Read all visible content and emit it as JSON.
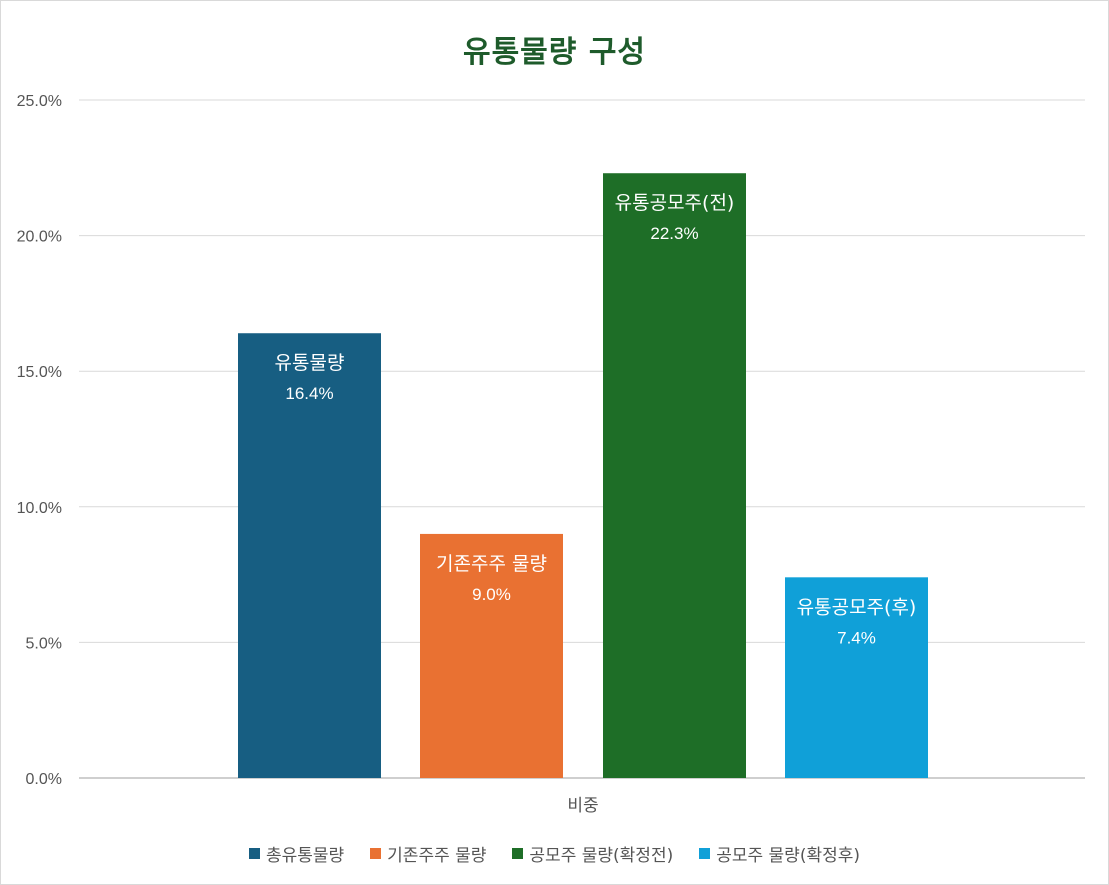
{
  "chart_data": {
    "type": "bar",
    "title": "유통물량 구성",
    "xlabel": "",
    "ylabel": "",
    "categories": [
      "비중"
    ],
    "ylim": [
      0,
      25
    ],
    "ytick_labels": [
      "0.0%",
      "5.0%",
      "10.0%",
      "15.0%",
      "20.0%",
      "25.0%"
    ],
    "ytick_values": [
      0,
      5,
      10,
      15,
      20,
      25
    ],
    "grid": true,
    "legend_position": "bottom",
    "series": [
      {
        "name": "총유통물량",
        "label": "유통물량",
        "value": 16.4,
        "value_label": "16.4%",
        "color": "#175e82"
      },
      {
        "name": "기존주주 물량",
        "label": "기존주주 물량",
        "value": 9.0,
        "value_label": "9.0%",
        "color": "#e97132"
      },
      {
        "name": "공모주 물량(확정전)",
        "label": "유통공모주(전)",
        "value": 22.3,
        "value_label": "22.3%",
        "color": "#1e6e27"
      },
      {
        "name": "공모주 물량(확정후)",
        "label": "유통공모주(후)",
        "value": 7.4,
        "value_label": "7.4%",
        "color": "#10a0d8"
      }
    ]
  }
}
